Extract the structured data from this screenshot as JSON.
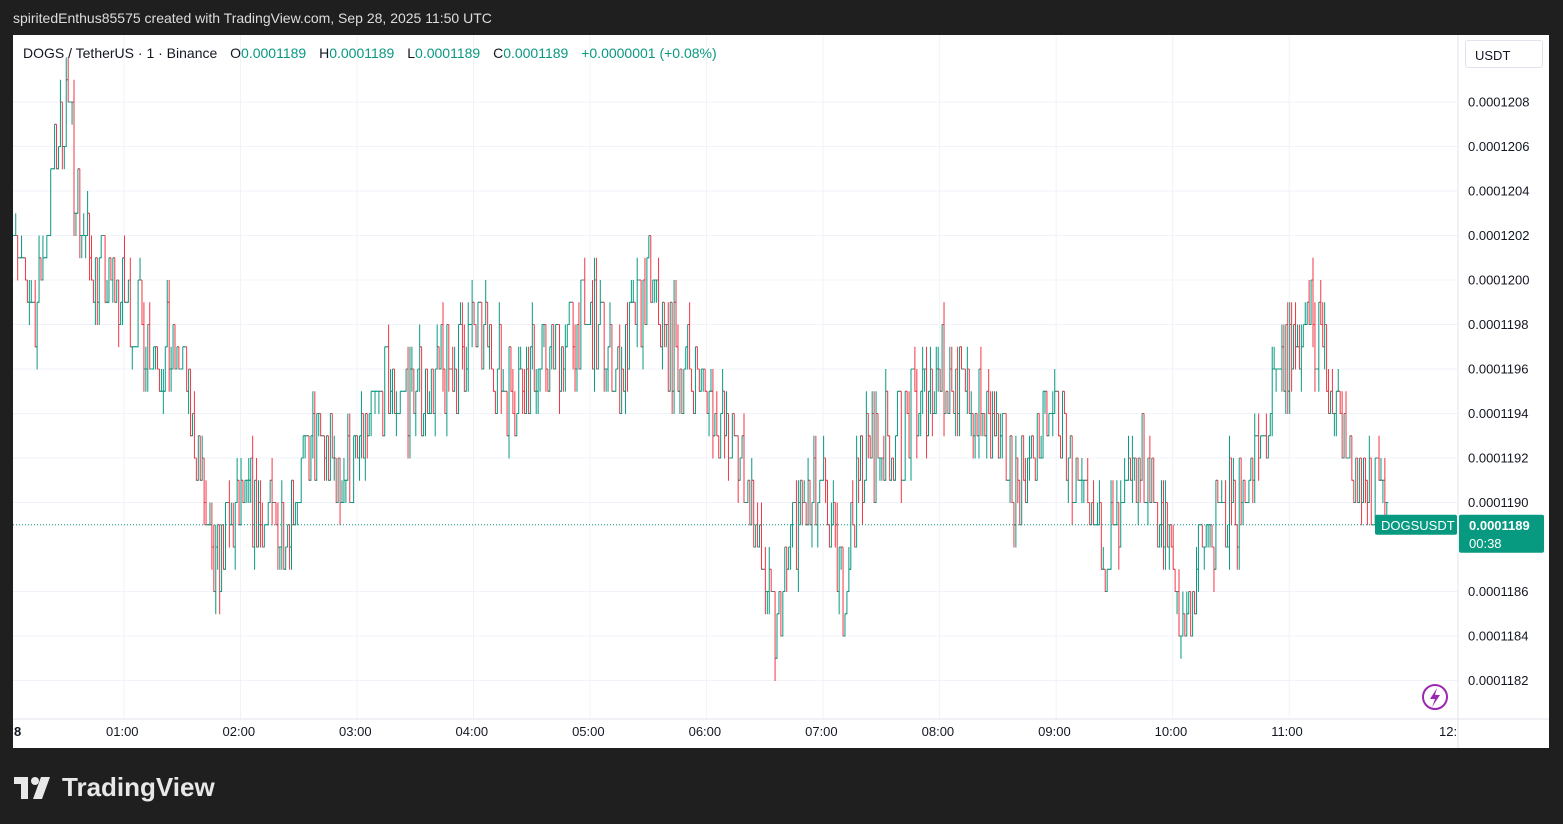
{
  "header": {
    "attribution": "spiritedEnthus85575 created with TradingView.com, Sep 28, 2025 11:50 UTC"
  },
  "legend": {
    "symbol": "DOGS / TetherUS · 1 · Binance",
    "o_label": "O",
    "o_value": "0.0001189",
    "h_label": "H",
    "h_value": "0.0001189",
    "l_label": "L",
    "l_value": "0.0001189",
    "c_label": "C",
    "c_value": "0.0001189",
    "change": "+0.0000001 (+0.08%)"
  },
  "toolbar": {
    "currency": "USDT"
  },
  "price_axis": {
    "labels": [
      "0.0001208",
      "0.0001206",
      "0.0001204",
      "0.0001202",
      "0.0001200",
      "0.0001198",
      "0.0001196",
      "0.0001194",
      "0.0001192",
      "0.0001190",
      "0.0001186",
      "0.0001184",
      "0.0001182"
    ]
  },
  "time_axis": {
    "labels": [
      "8",
      "01:00",
      "02:00",
      "03:00",
      "04:00",
      "05:00",
      "06:00",
      "07:00",
      "08:00",
      "09:00",
      "10:00",
      "11:00",
      "12:"
    ]
  },
  "last_price": {
    "symbol_tag": "DOGSUSDT",
    "price": "0.0001189",
    "countdown": "00:38"
  },
  "brand": {
    "name": "TradingView"
  },
  "colors": {
    "up": "#089981",
    "down": "#f23645",
    "grid": "#f0f3fa",
    "price_line": "#089981",
    "lightning": "#9c27b0"
  },
  "icons": {
    "lightning": "lightning-icon",
    "logo": "tradingview-logo-icon"
  },
  "chart_data": {
    "type": "ohlc",
    "title": "DOGS / TetherUS · 1 · Binance",
    "x_unit": "UTC time",
    "ylim": [
      0.0001181,
      0.000121
    ],
    "last_price": 0.0001189,
    "grid": true,
    "bar_style": "ohlc",
    "approximate_series": [
      {
        "time": "00:00",
        "price": 0.0001205
      },
      {
        "time": "00:05",
        "price": 0.00012
      },
      {
        "time": "00:15",
        "price": 0.0001199
      },
      {
        "time": "00:25",
        "price": 0.0001206
      },
      {
        "time": "00:30",
        "price": 0.0001208
      },
      {
        "time": "00:40",
        "price": 0.0001201
      },
      {
        "time": "01:00",
        "price": 0.0001199
      },
      {
        "time": "01:15",
        "price": 0.0001197
      },
      {
        "time": "01:30",
        "price": 0.0001196
      },
      {
        "time": "01:40",
        "price": 0.0001191
      },
      {
        "time": "01:45",
        "price": 0.0001186
      },
      {
        "time": "01:50",
        "price": 0.0001188
      },
      {
        "time": "02:00",
        "price": 0.000119
      },
      {
        "time": "02:20",
        "price": 0.0001189
      },
      {
        "time": "02:40",
        "price": 0.0001193
      },
      {
        "time": "02:50",
        "price": 0.0001191
      },
      {
        "time": "03:00",
        "price": 0.0001192
      },
      {
        "time": "03:15",
        "price": 0.0001195
      },
      {
        "time": "03:30",
        "price": 0.0001195
      },
      {
        "time": "03:50",
        "price": 0.0001196
      },
      {
        "time": "04:00",
        "price": 0.0001198
      },
      {
        "time": "04:20",
        "price": 0.0001195
      },
      {
        "time": "04:40",
        "price": 0.0001197
      },
      {
        "time": "05:00",
        "price": 0.0001198
      },
      {
        "time": "05:15",
        "price": 0.0001196
      },
      {
        "time": "05:30",
        "price": 0.00012
      },
      {
        "time": "05:40",
        "price": 0.0001197
      },
      {
        "time": "06:00",
        "price": 0.0001195
      },
      {
        "time": "06:20",
        "price": 0.0001191
      },
      {
        "time": "06:35",
        "price": 0.0001184
      },
      {
        "time": "06:45",
        "price": 0.0001189
      },
      {
        "time": "07:00",
        "price": 0.000119
      },
      {
        "time": "07:10",
        "price": 0.0001186
      },
      {
        "time": "07:20",
        "price": 0.0001192
      },
      {
        "time": "07:40",
        "price": 0.0001193
      },
      {
        "time": "08:00",
        "price": 0.0001196
      },
      {
        "time": "08:20",
        "price": 0.0001194
      },
      {
        "time": "08:40",
        "price": 0.0001191
      },
      {
        "time": "09:00",
        "price": 0.0001194
      },
      {
        "time": "09:15",
        "price": 0.0001189
      },
      {
        "time": "09:30",
        "price": 0.0001188
      },
      {
        "time": "09:45",
        "price": 0.0001192
      },
      {
        "time": "10:00",
        "price": 0.0001187
      },
      {
        "time": "10:05",
        "price": 0.0001184
      },
      {
        "time": "10:15",
        "price": 0.0001188
      },
      {
        "time": "10:30",
        "price": 0.000119
      },
      {
        "time": "10:45",
        "price": 0.0001192
      },
      {
        "time": "11:00",
        "price": 0.0001197
      },
      {
        "time": "11:10",
        "price": 0.0001198
      },
      {
        "time": "11:20",
        "price": 0.0001196
      },
      {
        "time": "11:30",
        "price": 0.0001192
      },
      {
        "time": "11:40",
        "price": 0.0001191
      },
      {
        "time": "11:50",
        "price": 0.0001189
      }
    ]
  }
}
